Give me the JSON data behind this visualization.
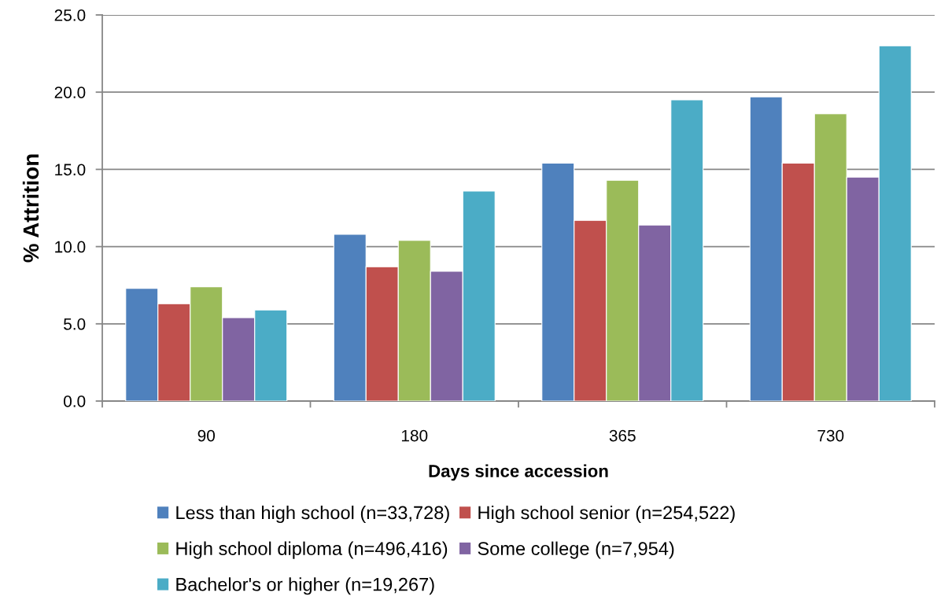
{
  "chart_data": {
    "type": "bar",
    "xlabel": "Days since accession",
    "ylabel": "% Attrition",
    "categories": [
      "90",
      "180",
      "365",
      "730"
    ],
    "series": [
      {
        "name": "Less than high school (n=33,728)",
        "color": "#4f81bd",
        "values": [
          7.3,
          10.8,
          15.4,
          19.7
        ]
      },
      {
        "name": "High school senior (n=254,522)",
        "color": "#c0504d",
        "values": [
          6.3,
          8.7,
          11.7,
          15.4
        ]
      },
      {
        "name": "High school diploma (n=496,416)",
        "color": "#9bbb59",
        "values": [
          7.4,
          10.4,
          14.3,
          18.6
        ]
      },
      {
        "name": "Some college (n=7,954)",
        "color": "#8064a2",
        "values": [
          5.4,
          8.4,
          11.4,
          14.5
        ]
      },
      {
        "name": "Bachelor's or higher (n=19,267)",
        "color": "#4bacc6",
        "values": [
          5.9,
          13.6,
          19.5,
          23.0
        ]
      }
    ],
    "ylim": [
      0,
      25
    ],
    "yticks": [
      {
        "value": 0,
        "label": "0.0"
      },
      {
        "value": 5,
        "label": "5.0"
      },
      {
        "value": 10,
        "label": "10.0"
      },
      {
        "value": 15,
        "label": "15.0"
      },
      {
        "value": 20,
        "label": "20.0"
      },
      {
        "value": 25,
        "label": "25.0"
      }
    ],
    "grid": "y",
    "legend": "bottom"
  }
}
